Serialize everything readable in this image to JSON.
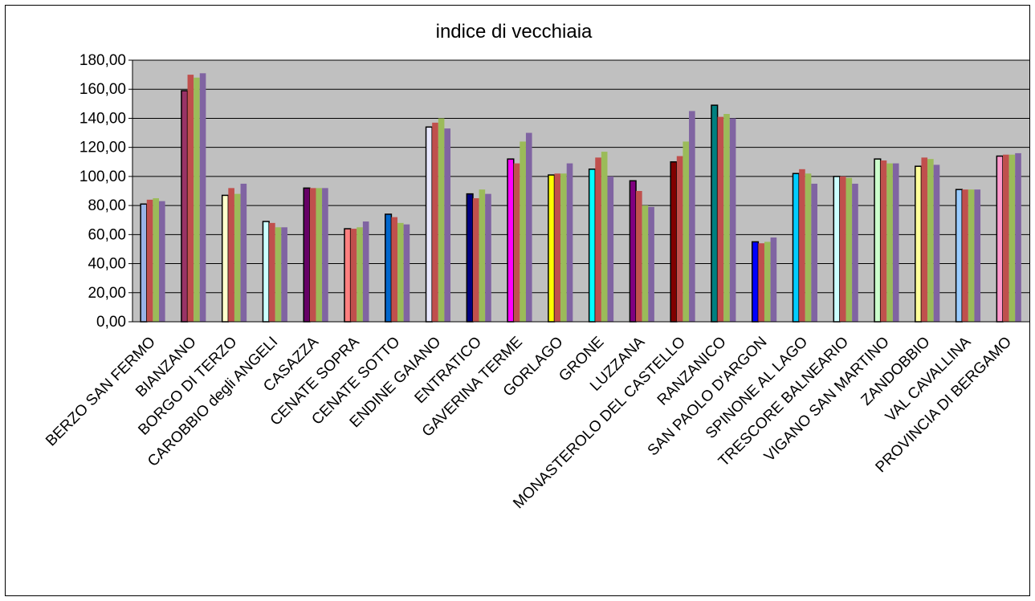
{
  "chart_data": {
    "type": "bar",
    "title": "indice di vecchiaia",
    "categories": [
      "BERZO SAN FERMO",
      "BIANZANO",
      "BORGO DI TERZO",
      "CAROBBIO degli ANGELI",
      "CASAZZA",
      "CENATE SOPRA",
      "CENATE SOTTO",
      "ENDINE GAIANO",
      "ENTRATICO",
      "GAVERINA TERME",
      "GORLAGO",
      "GRONE",
      "LUZZANA",
      "MONASTEROLO DEL CASTELLO",
      "RANZANICO",
      "SAN PAOLO D'ARGON",
      "SPINONE AL LAGO",
      "TRESCORE BALNEARIO",
      "VIGANO SAN MARTINO",
      "ZANDOBBIO",
      "VAL CAVALLINA",
      "PROVINCIA DI BERGAMO"
    ],
    "series": [
      {
        "colors": [
          "#99b3e6",
          "#993366",
          "#ffffcc",
          "#ccffff",
          "#660066",
          "#ff8080",
          "#0066cc",
          "#e8e8ff",
          "#000080",
          "#ff00ff",
          "#ffff00",
          "#00ffff",
          "#800080",
          "#800000",
          "#008080",
          "#0000ff",
          "#00ccff",
          "#ccffff",
          "#ccffcc",
          "#ffff99",
          "#99ccff",
          "#ff99cc"
        ],
        "values": [
          81,
          159,
          87,
          69,
          92,
          64,
          74,
          134,
          88,
          112,
          101,
          105,
          97,
          110,
          149,
          55,
          102,
          100,
          112,
          107,
          91,
          114
        ]
      },
      {
        "color": "#c0504d",
        "values": [
          84,
          170,
          92,
          68,
          92,
          64,
          72,
          137,
          85,
          109,
          102,
          113,
          90,
          114,
          141,
          54,
          105,
          100,
          111,
          113,
          91,
          115
        ]
      },
      {
        "color": "#9bbb59",
        "values": [
          85,
          168,
          88,
          65,
          92,
          65,
          68,
          140,
          91,
          124,
          102,
          117,
          80,
          124,
          143,
          55,
          102,
          99,
          109,
          112,
          91,
          115
        ]
      },
      {
        "color": "#8064a2",
        "values": [
          83,
          171,
          95,
          65,
          92,
          69,
          67,
          133,
          88,
          130,
          109,
          100,
          79,
          145,
          140,
          58,
          95,
          95,
          109,
          108,
          91,
          116
        ]
      }
    ],
    "ylim": [
      0,
      180
    ],
    "yticks": [
      {
        "value": 0,
        "label": "0,00"
      },
      {
        "value": 20,
        "label": "20,00"
      },
      {
        "value": 40,
        "label": "40,00"
      },
      {
        "value": 60,
        "label": "60,00"
      },
      {
        "value": 80,
        "label": "80,00"
      },
      {
        "value": 100,
        "label": "100,00"
      },
      {
        "value": 120,
        "label": "120,00"
      },
      {
        "value": 140,
        "label": "140,00"
      },
      {
        "value": 160,
        "label": "160,00"
      },
      {
        "value": 180,
        "label": "180,00"
      }
    ],
    "grid": true
  }
}
